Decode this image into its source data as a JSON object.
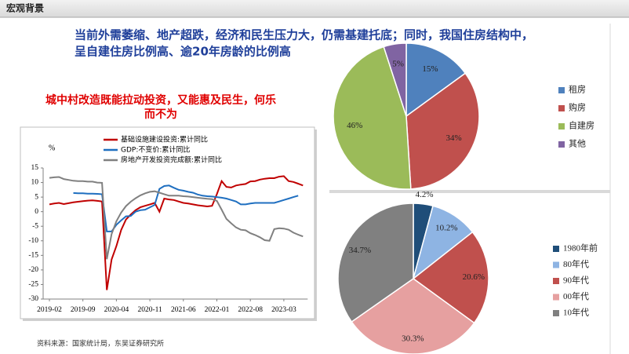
{
  "header": "宏观背景",
  "headline": [
    "当前外需萎缩、地产超跌，经济和民生压力大，仍需基建托底；同时，我国住房结构中，",
    "呈自建住房比例高、逾20年房龄的比例高"
  ],
  "subheadline": [
    "城中村改造既能拉动投资，又能惠及民生，何乐",
    "而不为"
  ],
  "source": "资料来源：国家统计局，东吴证券研究所",
  "chart_data": [
    {
      "type": "line",
      "ylabel": "%",
      "legend": "top-left",
      "grid": false,
      "categories": [
        "2019-02",
        null,
        null,
        null,
        null,
        null,
        null,
        "2019-09",
        null,
        null,
        null,
        null,
        null,
        null,
        "2020-04",
        null,
        null,
        null,
        null,
        null,
        null,
        "2020-11",
        null,
        null,
        null,
        null,
        null,
        null,
        "2021-06",
        null,
        null,
        null,
        null,
        null,
        null,
        "2022-01",
        null,
        null,
        null,
        null,
        null,
        null,
        "2022-08",
        null,
        null,
        null,
        null,
        null,
        null,
        "2023-03",
        null,
        null,
        null,
        null
      ],
      "ylim": [
        -30,
        15
      ],
      "yticks": [
        -30,
        -25,
        -20,
        -15,
        -10,
        -5,
        0,
        5,
        10,
        15
      ],
      "series": [
        {
          "name": "基础设施建设投资:累计同比",
          "color": "#c00000",
          "values": [
            2.5,
            2.8,
            3.0,
            2.6,
            2.9,
            3.2,
            3.4,
            3.6,
            3.8,
            3.9,
            3.7,
            3.5,
            -26.9,
            -16.4,
            -11.8,
            -6.3,
            -2.7,
            -1.0,
            0.5,
            1.5,
            2.0,
            2.5,
            3.0,
            0,
            4.5,
            4.2,
            4.0,
            3.5,
            3.0,
            2.8,
            2.5,
            2.2,
            2.0,
            1.8,
            2.0,
            6.0,
            10.5,
            8.5,
            8.3,
            9.0,
            9.3,
            9.5,
            10.4,
            10.5,
            11.0,
            11.3,
            11.5,
            11.5,
            12.0,
            12.2,
            10.5,
            10.2,
            9.6,
            9.0
          ]
        },
        {
          "name": "GDP:不变价:累计同比",
          "color": "#1f6fc0",
          "values": [
            null,
            null,
            null,
            null,
            null,
            6.4,
            6.3,
            6.3,
            6.2,
            6.2,
            6.1,
            6.0,
            -6.8,
            -6.8,
            -4.5,
            -3.0,
            -1.6,
            -1.5,
            0,
            0.5,
            0.7,
            1.5,
            2.3,
            7.8,
            8.8,
            9.0,
            8.2,
            7.5,
            7.2,
            6.8,
            6.5,
            5.9,
            5.5,
            5.3,
            5.2,
            5.0,
            4.8,
            4.5,
            4.0,
            3.5,
            2.5,
            2.5,
            2.8,
            3.0,
            3.0,
            3.0,
            3.0,
            3.0,
            3.5,
            4.0,
            4.5,
            5.0,
            5.5,
            null
          ]
        },
        {
          "name": "房地产开发投资完成额:累计同比",
          "color": "#808080",
          "values": [
            11.6,
            11.8,
            11.9,
            11.2,
            10.9,
            10.6,
            10.5,
            10.5,
            10.3,
            10.3,
            10.0,
            9.9,
            -16.3,
            -7.7,
            -3.3,
            -0.3,
            1.9,
            3.4,
            4.6,
            5.6,
            6.3,
            6.8,
            7.0,
            6.5,
            6.0,
            5.5,
            5.5,
            5.5,
            5.3,
            5.2,
            5.0,
            4.8,
            4.6,
            4.4,
            4.3,
            3.7,
            0.7,
            -2.5,
            -4.0,
            -5.4,
            -6.2,
            -6.4,
            -7.4,
            -8.0,
            -8.8,
            -9.8,
            -10.0,
            -6.0,
            -5.7,
            -5.8,
            -6.2,
            -7.2,
            -7.9,
            -8.5
          ]
        }
      ]
    },
    {
      "type": "pie",
      "legend": "right",
      "categories": [
        "租房",
        "购房",
        "自建房",
        "其他"
      ],
      "values": [
        15,
        34,
        46,
        5
      ],
      "value_labels": [
        "15%",
        "34%",
        "46%",
        "5%"
      ],
      "colors": [
        "#4f81bd",
        "#c0504d",
        "#9bbb59",
        "#8064a2"
      ]
    },
    {
      "type": "pie",
      "legend": "right",
      "categories": [
        "1980年前",
        "80年代",
        "90年代",
        "00年代",
        "10年代"
      ],
      "values": [
        4.2,
        10.2,
        20.6,
        30.3,
        34.7
      ],
      "value_labels": [
        "4.2%",
        "10.2%",
        "20.6%",
        "30.3%",
        "34.7%"
      ],
      "colors": [
        "#1f4e79",
        "#8eb4e3",
        "#c0504d",
        "#e6a0a0",
        "#808080"
      ]
    }
  ]
}
